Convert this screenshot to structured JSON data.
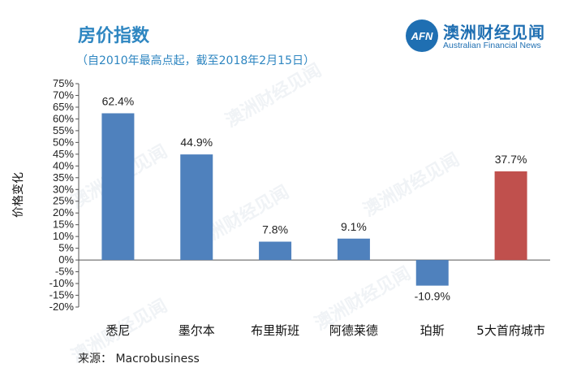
{
  "header": {
    "title": "房价指数",
    "subtitle": "（自2010年最高点起，截至2018年2月15日）"
  },
  "logo": {
    "mark": "AFN",
    "name_cn": "澳洲财经见闻",
    "name_en": "Australian Financial News"
  },
  "source": "来源： Macrobusiness",
  "watermark": "澳洲财经见闻",
  "chart_data": {
    "type": "bar",
    "ylabel": "价格变化",
    "ylim": [
      -20,
      75
    ],
    "ytick_step": 5,
    "ytick_labels": [
      "75%",
      "70%",
      "65%",
      "60%",
      "55%",
      "50%",
      "45%",
      "40%",
      "35%",
      "30%",
      "25%",
      "20%",
      "15%",
      "10%",
      "5%",
      "0%",
      "-5%",
      "-10%",
      "-15%",
      "-20%"
    ],
    "categories": [
      "悉尼",
      "墨尔本",
      "布里斯班",
      "阿德莱德",
      "珀斯",
      "5大首府城市"
    ],
    "values": [
      62.4,
      44.9,
      7.8,
      9.1,
      -10.9,
      37.7
    ],
    "data_labels": [
      "62.4%",
      "44.9%",
      "7.8%",
      "9.1%",
      "-10.9%",
      "37.7%"
    ],
    "colors": [
      "#4f81bd",
      "#4f81bd",
      "#4f81bd",
      "#4f81bd",
      "#4f81bd",
      "#c0504d"
    ],
    "grid": false,
    "legend": "none"
  }
}
